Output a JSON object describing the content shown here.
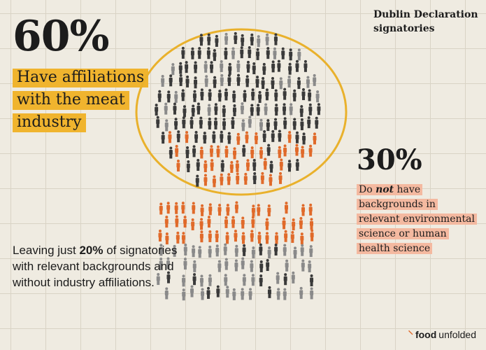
{
  "header": {
    "title_line1": "Dublin Declaration",
    "title_line2": "signatories"
  },
  "stat_60": {
    "value": "60%",
    "lines": [
      "Have affiliations",
      "with the meat",
      "industry"
    ]
  },
  "stat_30": {
    "value": "30%",
    "line1_pre": "Do ",
    "line1_em": "not",
    "line1_post": " have",
    "lines": [
      "backgrounds in",
      "relevant environmental",
      "science or human",
      "health science"
    ]
  },
  "remainder": {
    "pre": "Leaving just ",
    "value": "20%",
    "post": " of",
    "rest": "signatories  with relevant backgrounds and without industry affiliations."
  },
  "brand": {
    "mark": "⸌",
    "food": "food",
    "unfolded": "unfolded"
  },
  "colors": {
    "yellow_highlight": "#f0b42e",
    "pink_highlight": "#f4b9a0",
    "orange_figures": "#e06a2a",
    "grey_figures": "#8a8a8a",
    "dark_figures": "#3a3a3a",
    "circle": "#e9b12c"
  }
}
